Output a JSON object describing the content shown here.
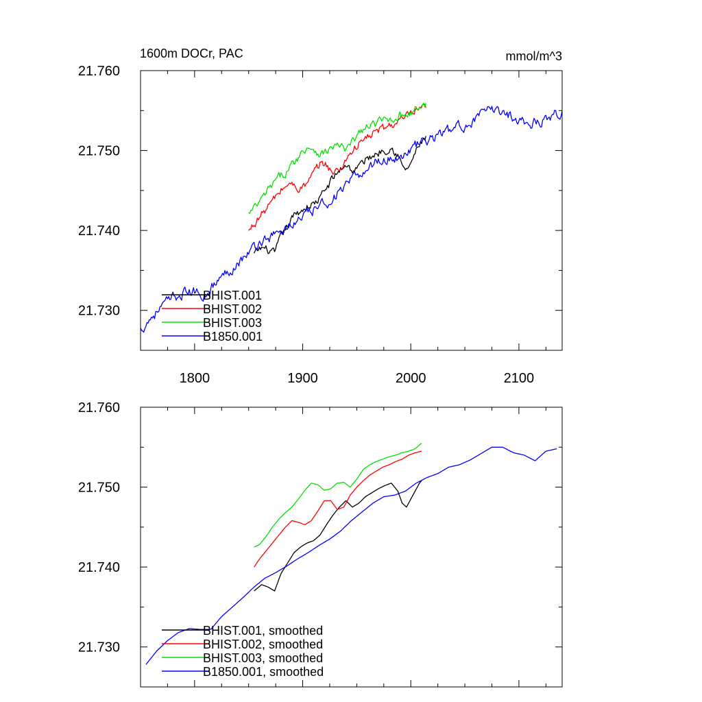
{
  "figure": {
    "title_left": "1600m DOCr, PAC",
    "title_right": "mmol/m^3"
  },
  "chart_data": [
    {
      "type": "line",
      "title": "1600m DOCr, PAC",
      "units": "mmol/m^3",
      "xlim": [
        1750,
        2140
      ],
      "ylim": [
        21.725,
        21.76
      ],
      "x_ticks": [
        1800,
        1900,
        2000,
        2100
      ],
      "x_tick_labels": [
        "1800",
        "1900",
        "2000",
        "2100"
      ],
      "y_ticks": [
        21.73,
        21.74,
        21.75,
        21.76
      ],
      "y_tick_labels": [
        "21.730",
        "21.740",
        "21.750",
        "21.760"
      ],
      "legend_position": "bottom-left",
      "series": [
        {
          "name": "BHIST.001",
          "color": "#000000",
          "noise": 0.0009,
          "x": [
            1855,
            1862,
            1868,
            1874,
            1880,
            1886,
            1892,
            1898,
            1904,
            1910,
            1916,
            1922,
            1928,
            1934,
            1940,
            1946,
            1952,
            1958,
            1964,
            1970,
            1976,
            1982,
            1988,
            1992,
            1996,
            2000,
            2004,
            2008,
            2014
          ],
          "y": [
            21.737,
            21.7378,
            21.7375,
            21.737,
            21.7392,
            21.7405,
            21.7418,
            21.7425,
            21.743,
            21.7433,
            21.744,
            21.7453,
            21.7465,
            21.7475,
            21.7483,
            21.7475,
            21.748,
            21.7488,
            21.7493,
            21.7498,
            21.7502,
            21.7505,
            21.7495,
            21.748,
            21.7475,
            21.7485,
            21.7495,
            21.7508,
            21.7515
          ]
        },
        {
          "name": "BHIST.002",
          "color": "#ff0000",
          "noise": 0.0009,
          "x": [
            1850,
            1856,
            1862,
            1868,
            1874,
            1880,
            1886,
            1892,
            1898,
            1904,
            1910,
            1916,
            1922,
            1928,
            1934,
            1940,
            1946,
            1952,
            1958,
            1964,
            1970,
            1976,
            1982,
            1988,
            1994,
            2000,
            2006,
            2014
          ],
          "y": [
            21.7398,
            21.741,
            21.742,
            21.743,
            21.744,
            21.745,
            21.7458,
            21.7456,
            21.7453,
            21.7458,
            21.747,
            21.7483,
            21.7483,
            21.7472,
            21.7475,
            21.749,
            21.75,
            21.7508,
            21.7515,
            21.752,
            21.7525,
            21.7528,
            21.7532,
            21.7535,
            21.754,
            21.7545,
            21.7548,
            21.7553
          ]
        },
        {
          "name": "BHIST.003",
          "color": "#00e000",
          "noise": 0.0009,
          "x": [
            1850,
            1856,
            1862,
            1868,
            1874,
            1880,
            1886,
            1892,
            1898,
            1904,
            1910,
            1916,
            1922,
            1928,
            1934,
            1940,
            1946,
            1952,
            1958,
            1964,
            1970,
            1976,
            1982,
            1988,
            1994,
            2000,
            2006,
            2014
          ],
          "y": [
            21.742,
            21.7428,
            21.7438,
            21.745,
            21.746,
            21.7468,
            21.7475,
            21.7485,
            21.7496,
            21.7505,
            21.7503,
            21.7496,
            21.7498,
            21.7505,
            21.7506,
            21.75,
            21.751,
            21.7522,
            21.7528,
            21.7532,
            21.7535,
            21.7538,
            21.754,
            21.7543,
            21.7545,
            21.7548,
            21.7552,
            21.7558
          ]
        },
        {
          "name": "B1850.001",
          "color": "#0000ff",
          "noise": 0.0011,
          "x": [
            1750,
            1760,
            1770,
            1780,
            1790,
            1800,
            1810,
            1820,
            1830,
            1840,
            1850,
            1860,
            1870,
            1880,
            1890,
            1900,
            1910,
            1920,
            1930,
            1940,
            1950,
            1960,
            1970,
            1980,
            1990,
            2000,
            2010,
            2020,
            2030,
            2040,
            2050,
            2060,
            2070,
            2080,
            2090,
            2100,
            2110,
            2120,
            2130,
            2140
          ],
          "y": [
            21.7275,
            21.7292,
            21.7305,
            21.7315,
            21.7322,
            21.7323,
            21.732,
            21.7335,
            21.7348,
            21.736,
            21.7372,
            21.7385,
            21.7392,
            21.7398,
            21.7408,
            21.7416,
            21.7425,
            21.7433,
            21.7443,
            21.7455,
            21.7467,
            21.7478,
            21.7488,
            21.749,
            21.7492,
            21.7502,
            21.751,
            21.7515,
            21.7523,
            21.7527,
            21.7532,
            21.754,
            21.7548,
            21.7552,
            21.7545,
            21.754,
            21.7533,
            21.7537,
            21.7545,
            21.7548
          ]
        }
      ]
    },
    {
      "type": "line",
      "xlim": [
        1750,
        2140
      ],
      "ylim": [
        21.725,
        21.76
      ],
      "x_ticks": [
        1800,
        1900,
        2000,
        2100
      ],
      "y_ticks": [
        21.73,
        21.74,
        21.75,
        21.76
      ],
      "y_tick_labels": [
        "21.730",
        "21.740",
        "21.750",
        "21.760"
      ],
      "legend_position": "bottom-left",
      "series": [
        {
          "name": "BHIST.001, smoothed",
          "color": "#000000",
          "x": [
            1855,
            1862,
            1868,
            1874,
            1880,
            1886,
            1892,
            1898,
            1904,
            1910,
            1916,
            1922,
            1928,
            1934,
            1940,
            1946,
            1952,
            1958,
            1964,
            1970,
            1976,
            1982,
            1988,
            1992,
            1996,
            2000,
            2004,
            2008,
            2010
          ],
          "y": [
            21.737,
            21.7378,
            21.7375,
            21.737,
            21.7392,
            21.7405,
            21.7418,
            21.7425,
            21.743,
            21.7433,
            21.744,
            21.7453,
            21.7465,
            21.7475,
            21.7483,
            21.7475,
            21.748,
            21.7488,
            21.7493,
            21.7498,
            21.7502,
            21.7505,
            21.7495,
            21.748,
            21.7475,
            21.7485,
            21.7495,
            21.7505,
            21.7508
          ]
        },
        {
          "name": "BHIST.002, smoothed",
          "color": "#ff0000",
          "x": [
            1855,
            1860,
            1866,
            1872,
            1878,
            1884,
            1890,
            1896,
            1902,
            1908,
            1914,
            1920,
            1926,
            1932,
            1938,
            1944,
            1950,
            1956,
            1962,
            1968,
            1974,
            1980,
            1986,
            1992,
            1998,
            2004,
            2010
          ],
          "y": [
            21.74,
            21.741,
            21.742,
            21.743,
            21.744,
            21.745,
            21.7458,
            21.7456,
            21.7453,
            21.7458,
            21.747,
            21.7483,
            21.7483,
            21.7472,
            21.7475,
            21.749,
            21.75,
            21.7508,
            21.7515,
            21.752,
            21.7525,
            21.7528,
            21.7532,
            21.7535,
            21.754,
            21.7543,
            21.7545
          ]
        },
        {
          "name": "BHIST.003, smoothed",
          "color": "#00e000",
          "x": [
            1855,
            1860,
            1866,
            1872,
            1878,
            1884,
            1890,
            1896,
            1902,
            1908,
            1914,
            1920,
            1926,
            1932,
            1938,
            1944,
            1950,
            1956,
            1962,
            1968,
            1974,
            1980,
            1986,
            1992,
            1998,
            2004,
            2010
          ],
          "y": [
            21.7425,
            21.7428,
            21.7438,
            21.745,
            21.746,
            21.7468,
            21.7475,
            21.7485,
            21.7496,
            21.7505,
            21.7503,
            21.7496,
            21.7498,
            21.7505,
            21.7506,
            21.75,
            21.751,
            21.7522,
            21.7528,
            21.7532,
            21.7535,
            21.7538,
            21.754,
            21.7543,
            21.7545,
            21.7548,
            21.7555
          ]
        },
        {
          "name": "B1850.001, smoothed",
          "color": "#0000ff",
          "x": [
            1755,
            1765,
            1775,
            1785,
            1795,
            1805,
            1815,
            1825,
            1835,
            1845,
            1855,
            1865,
            1875,
            1885,
            1895,
            1905,
            1915,
            1925,
            1935,
            1945,
            1955,
            1965,
            1975,
            1985,
            1995,
            2005,
            2015,
            2025,
            2035,
            2045,
            2055,
            2065,
            2075,
            2085,
            2095,
            2105,
            2115,
            2125,
            2135
          ],
          "y": [
            21.7278,
            21.7295,
            21.7308,
            21.7318,
            21.7323,
            21.7322,
            21.7322,
            21.7338,
            21.735,
            21.7362,
            21.7375,
            21.7386,
            21.7393,
            21.7401,
            21.741,
            21.7418,
            21.7427,
            21.7435,
            21.7445,
            21.7458,
            21.7469,
            21.748,
            21.7488,
            21.749,
            21.7495,
            21.7505,
            21.7512,
            21.7517,
            21.7525,
            21.7528,
            21.7534,
            21.7542,
            21.755,
            21.755,
            21.7543,
            21.754,
            21.7533,
            21.7545,
            21.7548
          ]
        }
      ]
    }
  ]
}
